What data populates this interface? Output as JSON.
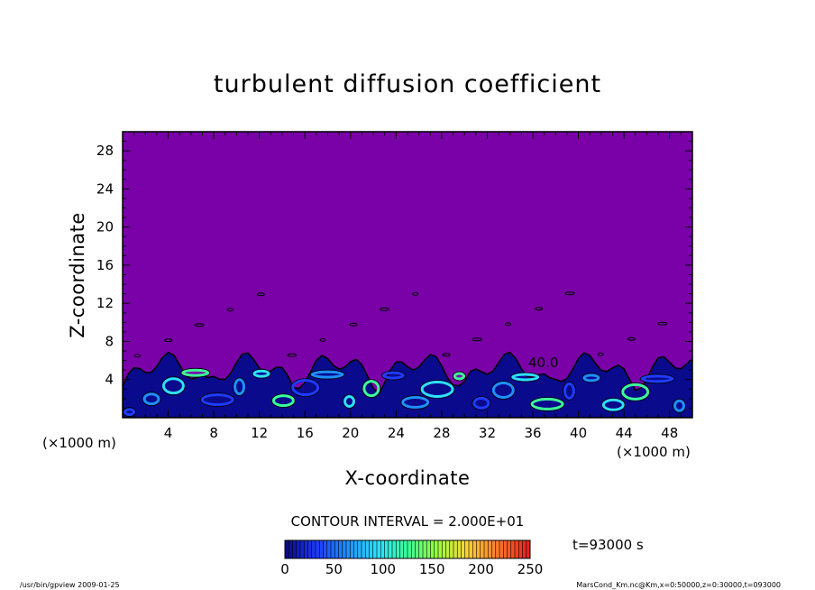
{
  "chart_data": {
    "type": "heatmap",
    "title": "turbulent diffusion coefficient",
    "xlabel": "X-coordinate",
    "ylabel": "Z-coordinate",
    "x_unit_label": "(×1000 m)",
    "z_unit_label": "(×1000 m)",
    "xlim": [
      0,
      50
    ],
    "ylim": [
      0,
      30
    ],
    "x_ticks": [
      4,
      8,
      12,
      16,
      20,
      24,
      28,
      32,
      36,
      40,
      44,
      48
    ],
    "y_ticks": [
      4,
      8,
      12,
      16,
      20,
      24,
      28
    ],
    "contour_interval_label": "CONTOUR INTERVAL = 2.000E+01",
    "contour_label": "40.0",
    "time_label": "t=93000 s",
    "colorbar": {
      "min": 0,
      "max": 250,
      "ticks": [
        0,
        50,
        100,
        150,
        200,
        250
      ],
      "colors": [
        "#7a00a8",
        "#0a0a8c",
        "#1e3cff",
        "#1e90ff",
        "#2ee0ff",
        "#3cff9a",
        "#9cff3c",
        "#ffd23c",
        "#ff7a2a",
        "#e62020"
      ]
    },
    "background_color": "#7a00a8",
    "turbulent_layer_top_approx": 6
  },
  "footer": {
    "left": "/usr/bin/gpview   2009-01-25",
    "right": "MarsCond_Km.nc@Km,x=0:50000,z=0:30000,t=093000"
  }
}
